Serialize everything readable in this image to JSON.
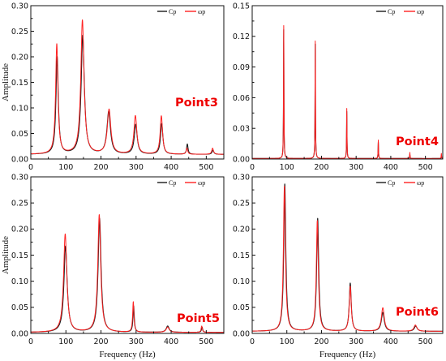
{
  "chart_data": [
    {
      "type": "line",
      "ylabel": "Amplitude",
      "xlabel": "",
      "xlim": [
        0,
        550
      ],
      "ylim": [
        0,
        0.3
      ],
      "xticks": [
        "0",
        "100",
        "200",
        "300",
        "400",
        "500"
      ],
      "yticks": [
        "0.00",
        "0.05",
        "0.10",
        "0.15",
        "0.20",
        "0.25",
        "0.30"
      ],
      "annotation": "Point3",
      "legend": [
        "Cp",
        "ωp"
      ],
      "series": [
        {
          "name": "Cp",
          "color": "#1a1a1a",
          "baseline": 0.009,
          "peaks": [
            [
              75,
              0.19,
              4
            ],
            [
              148,
              0.232,
              5.5
            ],
            [
              222,
              0.083,
              6
            ],
            [
              299,
              0.058,
              5
            ],
            [
              373,
              0.06,
              4
            ],
            [
              446,
              0.02,
              2.5
            ],
            [
              519,
              0.008,
              3
            ]
          ]
        },
        {
          "name": "ωp",
          "color": "#ff2222",
          "baseline": 0.009,
          "peaks": [
            [
              74,
              0.215,
              4
            ],
            [
              147,
              0.262,
              5.5
            ],
            [
              223,
              0.087,
              6
            ],
            [
              298,
              0.075,
              5
            ],
            [
              372,
              0.075,
              4
            ],
            [
              445,
              0.012,
              2.5
            ],
            [
              518,
              0.012,
              3
            ]
          ]
        }
      ]
    },
    {
      "type": "line",
      "ylabel": "",
      "xlabel": "",
      "xlim": [
        0,
        550
      ],
      "ylim": [
        0,
        0.15
      ],
      "xticks": [
        "0",
        "100",
        "200",
        "300",
        "400",
        "500"
      ],
      "yticks": [
        "0.00",
        "0.03",
        "0.06",
        "0.09",
        "0.12",
        "0.15"
      ],
      "annotation": "Point4",
      "legend": [
        "Cp",
        "ωp"
      ],
      "series": [
        {
          "name": "Cp",
          "color": "#1a1a1a",
          "baseline": 0.0005,
          "peaks": [
            [
              91,
              0.126,
              0.7
            ],
            [
              182,
              0.112,
              0.7
            ],
            [
              273,
              0.046,
              0.7
            ],
            [
              364,
              0.016,
              0.7
            ],
            [
              455,
              0.004,
              0.7
            ],
            [
              546,
              0.003,
              0.7
            ]
          ]
        },
        {
          "name": "ωp",
          "color": "#ff2222",
          "baseline": 0.0005,
          "peaks": [
            [
              91,
              0.13,
              0.7
            ],
            [
              182,
              0.115,
              0.7
            ],
            [
              273,
              0.049,
              0.7
            ],
            [
              364,
              0.018,
              0.7
            ],
            [
              455,
              0.006,
              0.7
            ],
            [
              546,
              0.005,
              0.7
            ]
          ]
        }
      ]
    },
    {
      "type": "line",
      "ylabel": "Amplitude",
      "xlabel": "Frequency (Hz)",
      "xlim": [
        0,
        550
      ],
      "ylim": [
        0,
        0.3
      ],
      "xticks": [
        "0",
        "100",
        "200",
        "300",
        "400",
        "500"
      ],
      "yticks": [
        "0.00",
        "0.05",
        "0.10",
        "0.15",
        "0.20",
        "0.25",
        "0.30"
      ],
      "annotation": "Point5",
      "legend": [
        "Cp",
        "ωp"
      ],
      "series": [
        {
          "name": "Cp",
          "color": "#1a1a1a",
          "baseline": 0.002,
          "peaks": [
            [
              99,
              0.165,
              5.5
            ],
            [
              196,
              0.218,
              5
            ],
            [
              293,
              0.05,
              2.2
            ],
            [
              390,
              0.012,
              5
            ],
            [
              488,
              0.01,
              2
            ]
          ]
        },
        {
          "name": "ωp",
          "color": "#ff2222",
          "baseline": 0.002,
          "peaks": [
            [
              98,
              0.188,
              5.5
            ],
            [
              195,
              0.225,
              5
            ],
            [
              292,
              0.058,
              2.2
            ],
            [
              390,
              0.01,
              5
            ],
            [
              487,
              0.012,
              2
            ]
          ]
        }
      ]
    },
    {
      "type": "line",
      "ylabel": "",
      "xlabel": "Frequency (Hz)",
      "xlim": [
        0,
        550
      ],
      "ylim": [
        0,
        0.3
      ],
      "xticks": [
        "0",
        "100",
        "200",
        "300",
        "400",
        "500"
      ],
      "yticks": [
        "0.00",
        "0.05",
        "0.10",
        "0.15",
        "0.20",
        "0.25",
        "0.30"
      ],
      "annotation": "Point6",
      "legend": [
        "Cp",
        "ωp"
      ],
      "series": [
        {
          "name": "Cp",
          "color": "#1a1a1a",
          "baseline": 0.004,
          "peaks": [
            [
              94,
              0.282,
              3.5
            ],
            [
              189,
              0.216,
              3.5
            ],
            [
              283,
              0.092,
              3.5
            ],
            [
              377,
              0.036,
              5
            ],
            [
              472,
              0.01,
              5
            ]
          ]
        },
        {
          "name": "ωp",
          "color": "#ff2222",
          "baseline": 0.004,
          "peaks": [
            [
              93,
              0.278,
              3.5
            ],
            [
              188,
              0.212,
              3.5
            ],
            [
              283,
              0.086,
              3.5
            ],
            [
              377,
              0.045,
              5
            ],
            [
              471,
              0.012,
              5
            ]
          ]
        }
      ]
    }
  ]
}
